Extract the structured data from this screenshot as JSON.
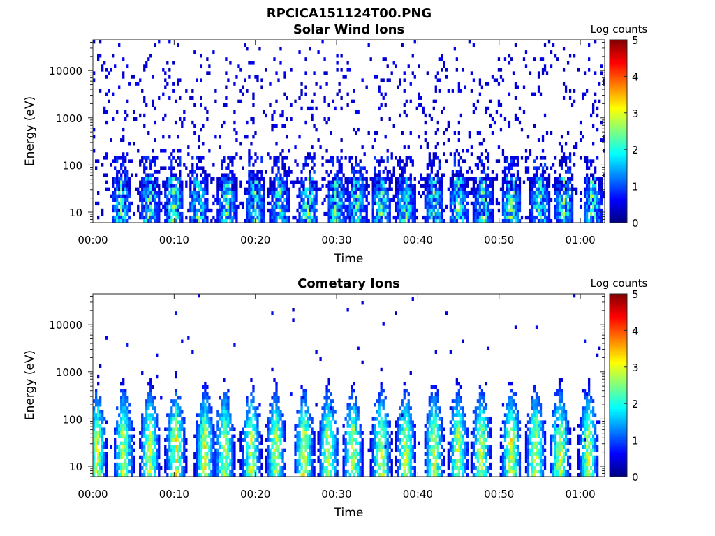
{
  "figure_title": "RPCICA151124T00.PNG",
  "colors": {
    "colormap": [
      "#00007f",
      "#0000ff",
      "#007fff",
      "#00ffff",
      "#7fff7f",
      "#ffff00",
      "#ff7f00",
      "#ff0000",
      "#7f0000"
    ]
  },
  "chart_data": [
    {
      "type": "heatmap",
      "title": "Solar Wind Ions",
      "xlabel": "Time",
      "ylabel": "Energy (eV)",
      "yscale": "log",
      "ylim": [
        6,
        45000
      ],
      "xlim_minutes": [
        0,
        63
      ],
      "x_ticks": [
        "00:00",
        "00:10",
        "00:20",
        "00:30",
        "00:40",
        "00:50",
        "01:00"
      ],
      "x_tick_minutes": [
        0,
        10,
        20,
        30,
        40,
        50,
        60
      ],
      "y_ticks": [
        "10",
        "100",
        "1000",
        "10000"
      ],
      "y_tick_values": [
        10,
        100,
        1000,
        10000
      ],
      "colorbar": {
        "label": "Log counts",
        "range": [
          0,
          5
        ],
        "ticks": [
          "0",
          "1",
          "2",
          "3",
          "4",
          "5"
        ]
      },
      "features": {
        "background_density": 0.09,
        "low_energy_bursts_minutes": [
          3.5,
          7,
          10,
          13,
          16.5,
          20,
          23,
          26.5,
          30,
          32.5,
          35.5,
          38.5,
          42,
          45,
          48,
          51.5,
          55,
          58,
          61.5
        ]
      }
    },
    {
      "type": "heatmap",
      "title": "Cometary Ions",
      "xlabel": "Time",
      "ylabel": "Energy (eV)",
      "yscale": "log",
      "ylim": [
        6,
        45000
      ],
      "xlim_minutes": [
        0,
        63
      ],
      "x_ticks": [
        "00:00",
        "00:10",
        "00:20",
        "00:30",
        "00:40",
        "00:50",
        "01:00"
      ],
      "x_tick_minutes": [
        0,
        10,
        20,
        30,
        40,
        50,
        60
      ],
      "y_ticks": [
        "10",
        "100",
        "1000",
        "10000"
      ],
      "y_tick_values": [
        10,
        100,
        1000,
        10000
      ],
      "colorbar": {
        "label": "Log counts",
        "range": [
          0,
          5
        ],
        "ticks": [
          "0",
          "1",
          "2",
          "3",
          "4",
          "5"
        ]
      },
      "features": {
        "background_density": 0.006,
        "low_energy_bursts_minutes": [
          0.5,
          3.8,
          7,
          10.2,
          13.8,
          16.2,
          19.5,
          22.5,
          26,
          29,
          32,
          35.5,
          38.5,
          42,
          45,
          47.8,
          51.5,
          54.5,
          57.5,
          61
        ]
      }
    }
  ]
}
